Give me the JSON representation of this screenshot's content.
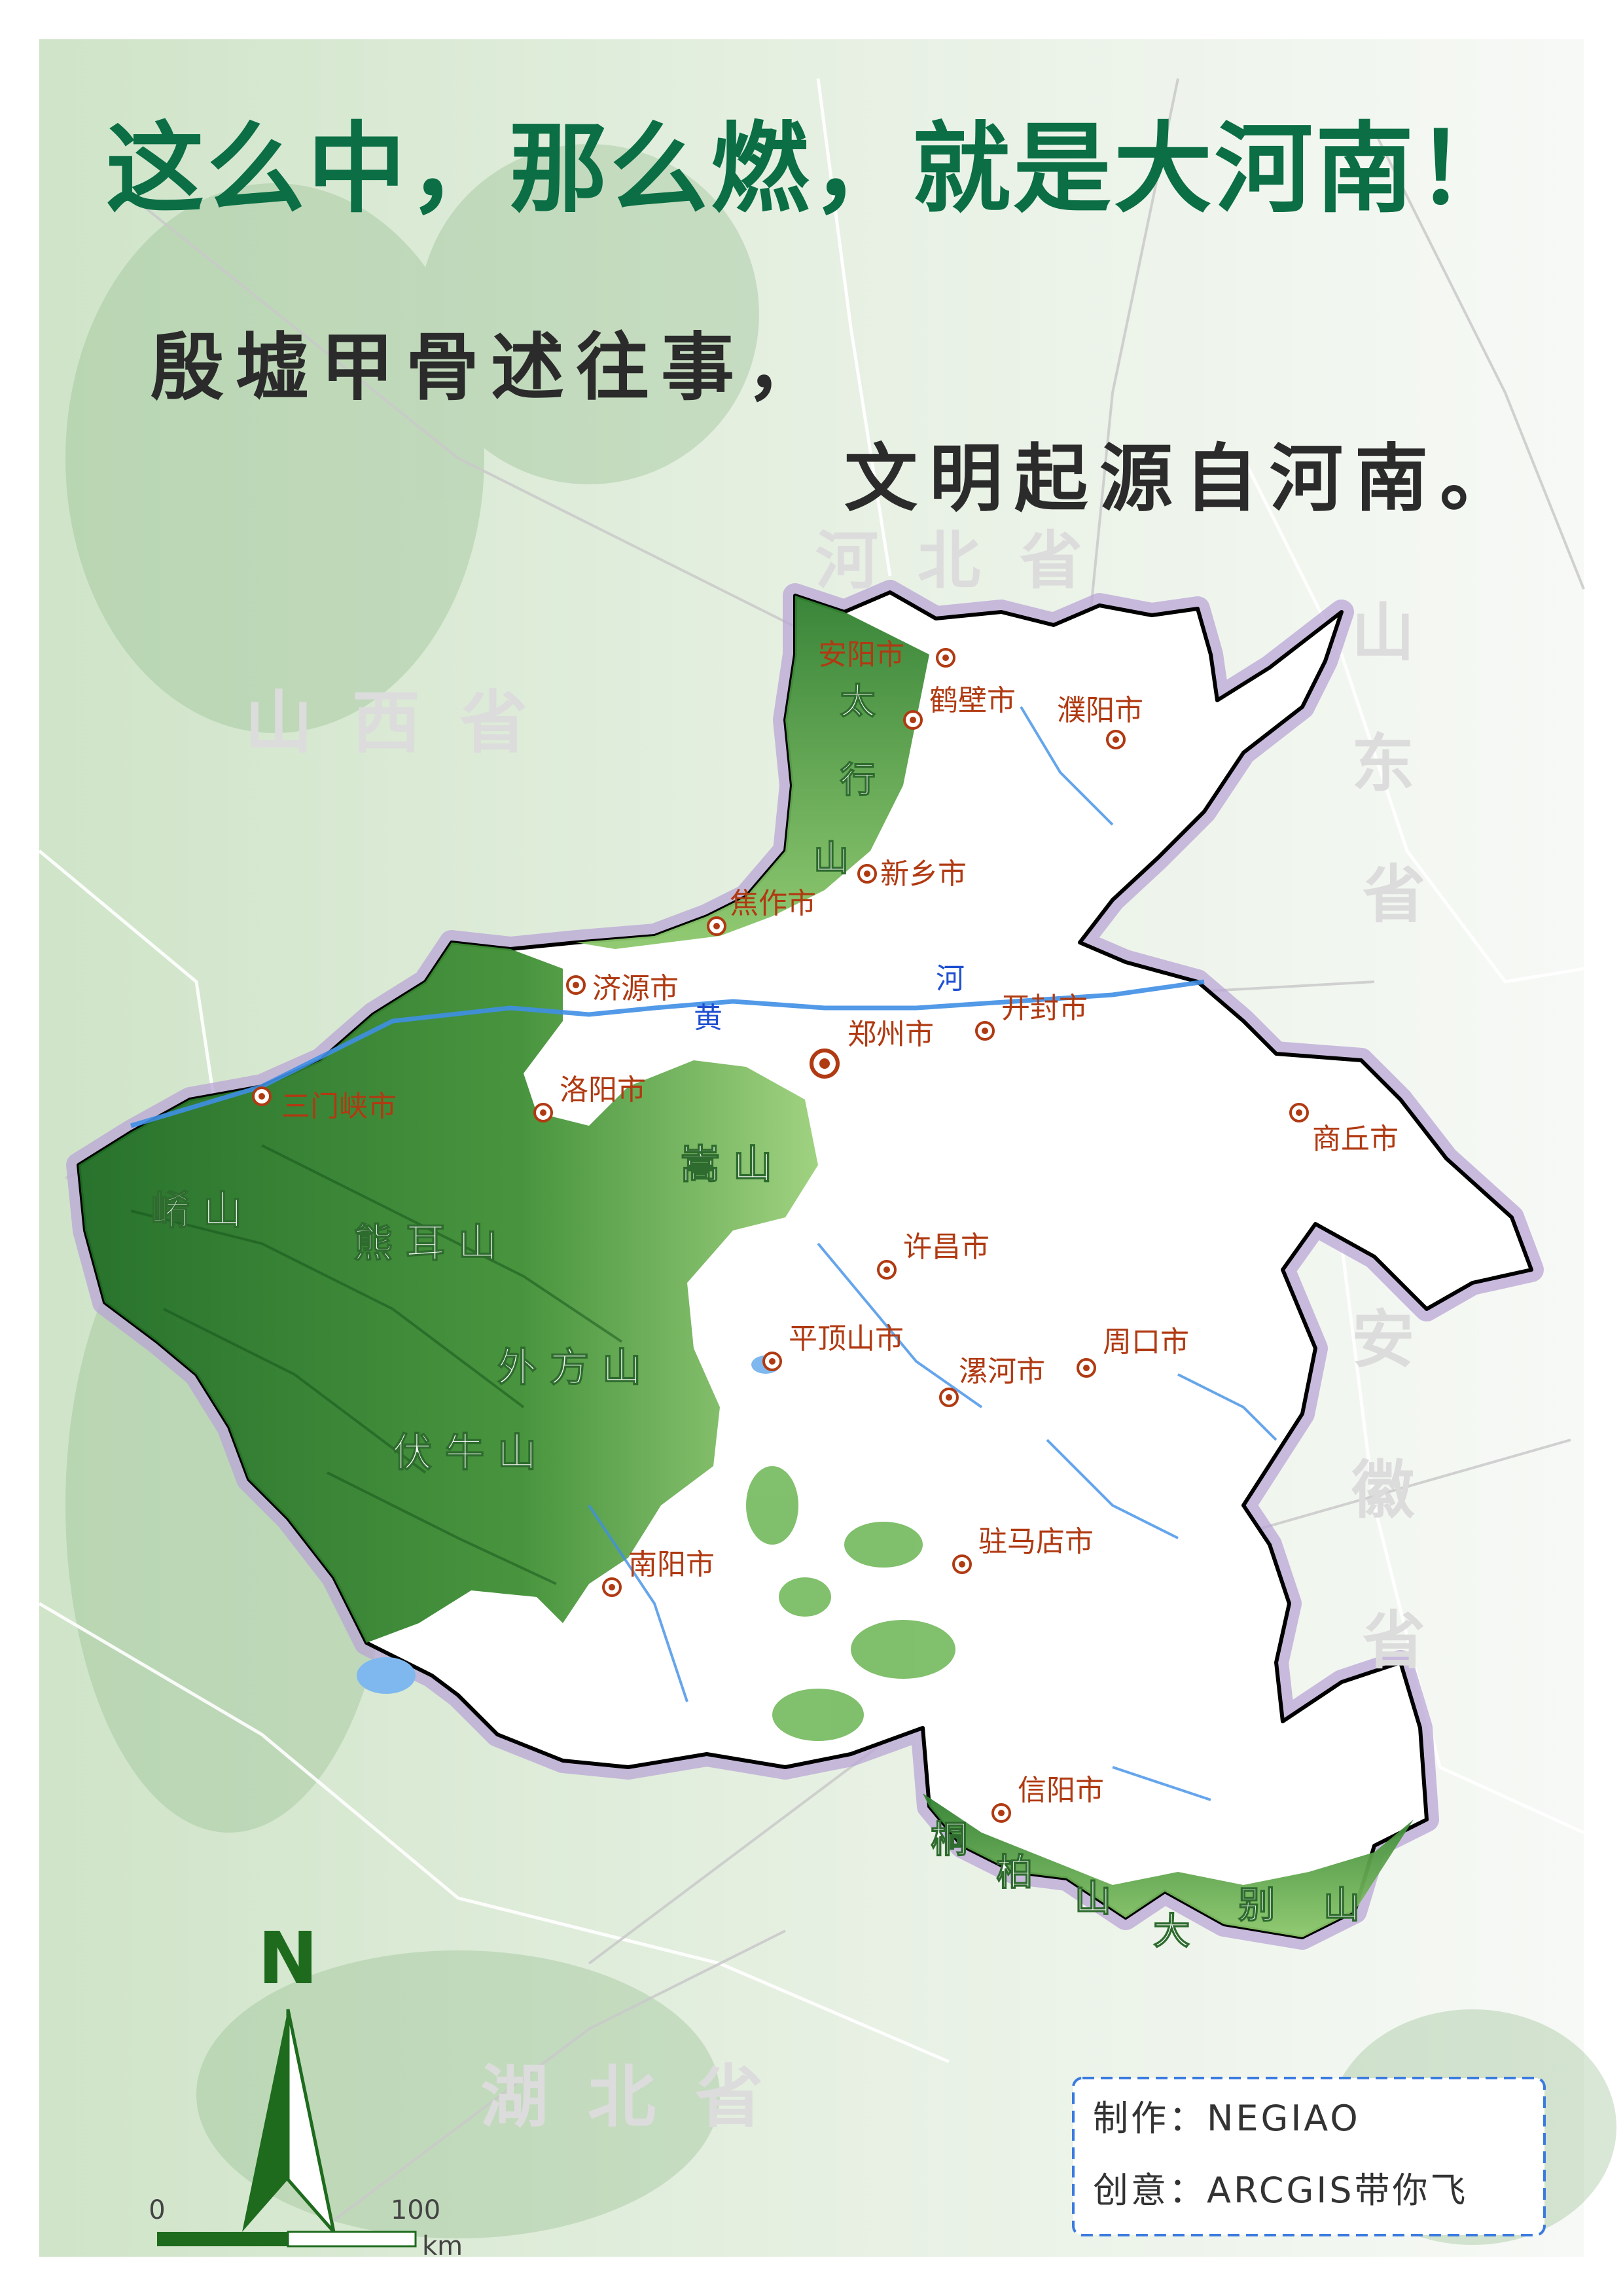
{
  "title": "这么中，那么燃，就是大河南！",
  "poem": {
    "line1": "殷墟甲骨述往事，",
    "line2": "文明起源自河南。"
  },
  "colors": {
    "title": "#0b6e45",
    "poem": "#2b2b2b",
    "city_label": "#b03a12",
    "mountain_label": "#ffffff",
    "river_label": "#1f4fd1",
    "province_label": "#d8d8d8",
    "henan_fill": "#ffffff",
    "terrain_dark": "#1d6b22",
    "terrain_light": "#9bd07a",
    "background": "#e3eedd",
    "border_glow": "#b9a6d6",
    "river": "#3f8fe6",
    "road": "#c9c9c9",
    "north_arrow": "#1e6b1e",
    "credit_border": "#3b7be0"
  },
  "provinces": [
    {
      "id": "hebei",
      "name": "河北省"
    },
    {
      "id": "shanxi",
      "name": "山西省"
    },
    {
      "id": "shandong",
      "name": "山东省"
    },
    {
      "id": "anhui",
      "name": "安徽省"
    },
    {
      "id": "hubei",
      "name": "湖北省"
    }
  ],
  "cities": [
    {
      "id": "anyang",
      "name": "安阳市"
    },
    {
      "id": "hebi",
      "name": "鹤壁市"
    },
    {
      "id": "puyang",
      "name": "濮阳市"
    },
    {
      "id": "xinxiang",
      "name": "新乡市"
    },
    {
      "id": "jiaozuo",
      "name": "焦作市"
    },
    {
      "id": "jiyuan",
      "name": "济源市"
    },
    {
      "id": "zhengzhou",
      "name": "郑州市",
      "capital": true
    },
    {
      "id": "kaifeng",
      "name": "开封市"
    },
    {
      "id": "sanmenxia",
      "name": "三门峡市"
    },
    {
      "id": "luoyang",
      "name": "洛阳市"
    },
    {
      "id": "shangqiu",
      "name": "商丘市"
    },
    {
      "id": "xuchang",
      "name": "许昌市"
    },
    {
      "id": "pingdingshan",
      "name": "平顶山市"
    },
    {
      "id": "luohe",
      "name": "漯河市"
    },
    {
      "id": "zhoukou",
      "name": "周口市"
    },
    {
      "id": "nanyang",
      "name": "南阳市"
    },
    {
      "id": "zhumadian",
      "name": "驻马店市"
    },
    {
      "id": "xinyang",
      "name": "信阳市"
    }
  ],
  "mountains": [
    {
      "id": "taihang",
      "name": "太行山"
    },
    {
      "id": "songshan",
      "name": "嵩山"
    },
    {
      "id": "xiaoshan",
      "name": "崤山"
    },
    {
      "id": "xiongershan",
      "name": "熊耳山"
    },
    {
      "id": "waifangshan",
      "name": "外方山"
    },
    {
      "id": "funiushan",
      "name": "伏牛山"
    },
    {
      "id": "tongbaishan",
      "name": "桐柏山"
    },
    {
      "id": "dabieshan",
      "name": "大别山"
    }
  ],
  "river": {
    "name": "黄河"
  },
  "north_arrow": {
    "label": "N"
  },
  "scale_bar": {
    "start": "0",
    "end": "100",
    "unit": "km"
  },
  "credits": {
    "line1": "制作：NEGIAO",
    "line2": "创意：ARCGIS带你飞"
  }
}
